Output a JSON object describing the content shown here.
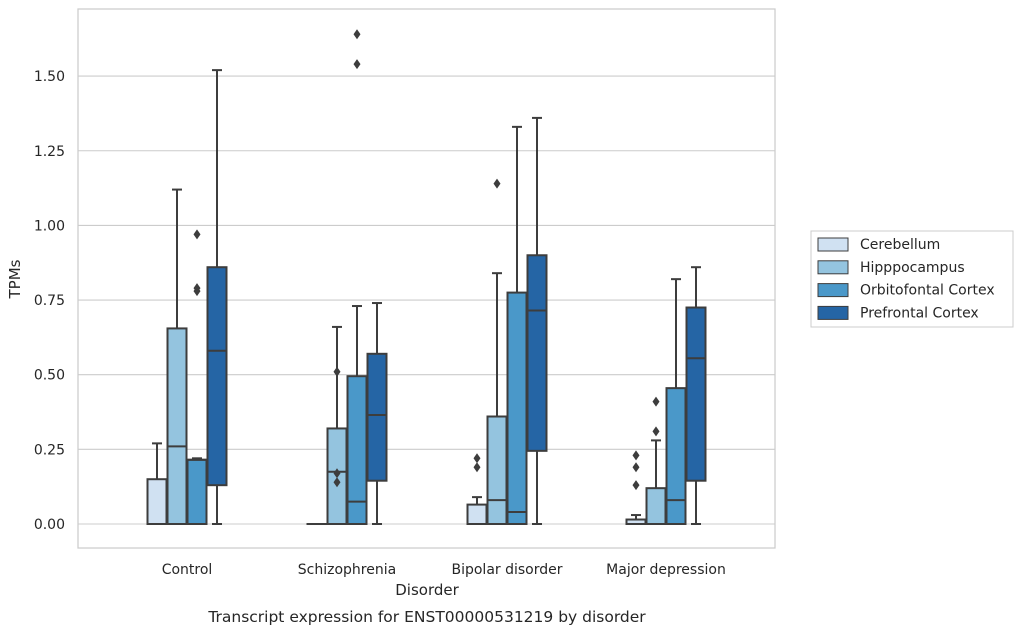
{
  "chart_data": {
    "type": "box",
    "caption": "Transcript expression for ENST00000531219 by disorder",
    "xlabel": "Disorder",
    "ylabel": "TPMs",
    "ylim": [
      -0.08,
      1.73
    ],
    "yticks": [
      0.0,
      0.25,
      0.5,
      0.75,
      1.0,
      1.25,
      1.5
    ],
    "ytick_labels": [
      "0.00",
      "0.25",
      "0.50",
      "0.75",
      "1.00",
      "1.25",
      "1.50"
    ],
    "grid": true,
    "legend_position": "right",
    "categories": [
      "Control",
      "Schizophrenia",
      "Bipolar disorder",
      "Major depression"
    ],
    "series": [
      {
        "name": "Cerebellum",
        "color": "#d0e1f2",
        "boxes": [
          {
            "whisker_low": 0.0,
            "q1": 0.0,
            "median": 0.0,
            "q3": 0.15,
            "whisker_high": 0.27,
            "outliers": []
          },
          {
            "whisker_low": 0.0,
            "q1": 0.0,
            "median": 0.0,
            "q3": 0.0,
            "whisker_high": 0.0,
            "outliers": []
          },
          {
            "whisker_low": 0.0,
            "q1": 0.0,
            "median": 0.0,
            "q3": 0.065,
            "whisker_high": 0.09,
            "outliers": [
              0.19,
              0.22
            ]
          },
          {
            "whisker_low": 0.0,
            "q1": 0.0,
            "median": 0.0,
            "q3": 0.015,
            "whisker_high": 0.03,
            "outliers": [
              0.13,
              0.19,
              0.23
            ]
          }
        ]
      },
      {
        "name": "Hipppocampus",
        "color": "#94c4df",
        "boxes": [
          {
            "whisker_low": 0.0,
            "q1": 0.0,
            "median": 0.26,
            "q3": 0.655,
            "whisker_high": 1.12,
            "outliers": []
          },
          {
            "whisker_low": 0.0,
            "q1": 0.0,
            "median": 0.175,
            "q3": 0.32,
            "whisker_high": 0.66,
            "outliers": [
              0.14,
              0.17,
              0.51
            ]
          },
          {
            "whisker_low": 0.0,
            "q1": 0.0,
            "median": 0.08,
            "q3": 0.36,
            "whisker_high": 0.84,
            "outliers": [
              1.14
            ]
          },
          {
            "whisker_low": 0.0,
            "q1": 0.0,
            "median": 0.0,
            "q3": 0.12,
            "whisker_high": 0.28,
            "outliers": [
              0.31,
              0.41
            ]
          }
        ]
      },
      {
        "name": "Orbitofontal Cortex",
        "color": "#4a98c9",
        "boxes": [
          {
            "whisker_low": 0.0,
            "q1": 0.0,
            "median": 0.215,
            "q3": 0.215,
            "whisker_high": 0.22,
            "outliers": [
              0.78,
              0.79,
              0.97
            ]
          },
          {
            "whisker_low": 0.0,
            "q1": 0.0,
            "median": 0.075,
            "q3": 0.495,
            "whisker_high": 0.73,
            "outliers": [
              1.54,
              1.64
            ]
          },
          {
            "whisker_low": 0.0,
            "q1": 0.0,
            "median": 0.04,
            "q3": 0.775,
            "whisker_high": 1.33,
            "outliers": []
          },
          {
            "whisker_low": 0.0,
            "q1": 0.0,
            "median": 0.08,
            "q3": 0.455,
            "whisker_high": 0.82,
            "outliers": []
          }
        ]
      },
      {
        "name": "Prefrontal Cortex",
        "color": "#2565a5",
        "boxes": [
          {
            "whisker_low": 0.0,
            "q1": 0.13,
            "median": 0.58,
            "q3": 0.86,
            "whisker_high": 1.52,
            "outliers": []
          },
          {
            "whisker_low": 0.0,
            "q1": 0.145,
            "median": 0.365,
            "q3": 0.57,
            "whisker_high": 0.74,
            "outliers": []
          },
          {
            "whisker_low": 0.0,
            "q1": 0.245,
            "median": 0.715,
            "q3": 0.9,
            "whisker_high": 1.36,
            "outliers": []
          },
          {
            "whisker_low": 0.0,
            "q1": 0.145,
            "median": 0.555,
            "q3": 0.725,
            "whisker_high": 0.86,
            "outliers": []
          }
        ]
      }
    ]
  }
}
